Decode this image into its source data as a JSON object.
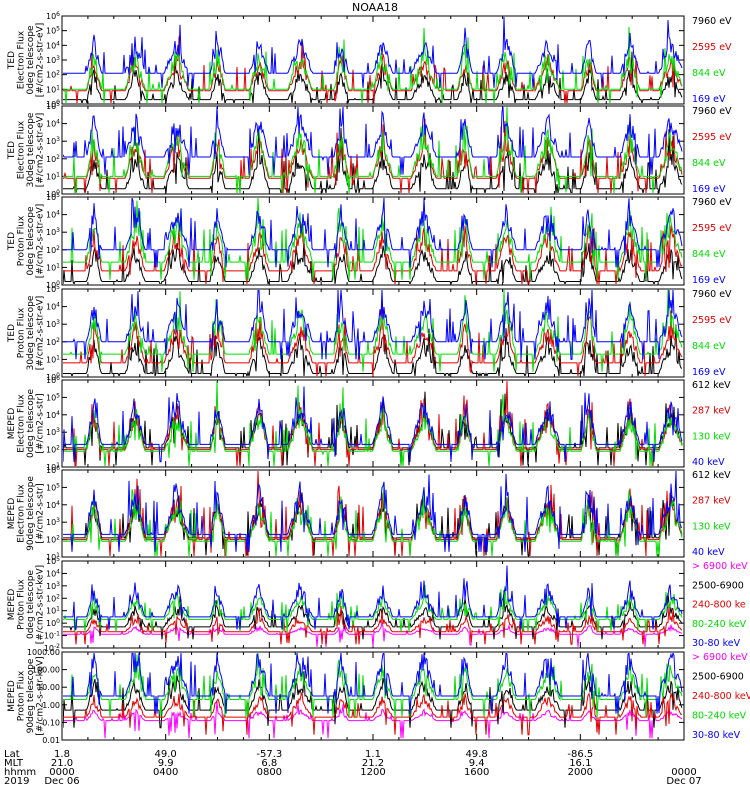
{
  "title": "NOAA18",
  "colors": {
    "black": "#000000",
    "red": "#e00000",
    "green": "#00dd00",
    "blue": "#0000ff",
    "magenta": "#ff00ff"
  },
  "chart_data": [
    {
      "type": "line",
      "name": "ted-electron-0deg",
      "ylabel": [
        "TED",
        "Electron Flux",
        "0deg telescope",
        "[#/cm2-s-str-eV]"
      ],
      "yscale": "log",
      "ylim": [
        1,
        1000000
      ],
      "ytick_labels": [
        "10^0",
        "10^1",
        "10^2",
        "10^3",
        "10^4",
        "10^5",
        "10^6"
      ],
      "series": [
        {
          "name": "7960 eV",
          "color": "black"
        },
        {
          "name": "2595 eV",
          "color": "red"
        },
        {
          "name": "844 eV",
          "color": "green"
        },
        {
          "name": "169 eV",
          "color": "blue"
        }
      ]
    },
    {
      "type": "line",
      "name": "ted-electron-30deg",
      "ylabel": [
        "TED",
        "Electron Flux",
        "30deg telescope",
        "[#/cm2-s-str-eV]"
      ],
      "yscale": "log",
      "ylim": [
        1,
        100000
      ],
      "ytick_labels": [
        "10^0",
        "10^1",
        "10^2",
        "10^3",
        "10^4",
        "10^5"
      ],
      "series": [
        {
          "name": "7960 eV",
          "color": "black"
        },
        {
          "name": "2595 eV",
          "color": "red"
        },
        {
          "name": "844 eV",
          "color": "green"
        },
        {
          "name": "169 eV",
          "color": "blue"
        }
      ]
    },
    {
      "type": "line",
      "name": "ted-proton-0deg",
      "ylabel": [
        "TED",
        "Proton Flux",
        "0deg telescope",
        "[#/cm2-s-str-eV]"
      ],
      "yscale": "log",
      "ylim": [
        1,
        100000
      ],
      "ytick_labels": [
        "10^0",
        "10^1",
        "10^2",
        "10^3",
        "10^4",
        "10^5"
      ],
      "series": [
        {
          "name": "7960 eV",
          "color": "black"
        },
        {
          "name": "2595 eV",
          "color": "red"
        },
        {
          "name": "844 eV",
          "color": "green"
        },
        {
          "name": "169 eV",
          "color": "blue"
        }
      ]
    },
    {
      "type": "line",
      "name": "ted-proton-30deg",
      "ylabel": [
        "TED",
        "Proton Flux",
        "30deg telescope",
        "[#/cm2-s-str-eV]"
      ],
      "yscale": "log",
      "ylim": [
        1,
        100000
      ],
      "ytick_labels": [
        "10^0",
        "10^1",
        "10^2",
        "10^3",
        "10^4",
        "10^5"
      ],
      "series": [
        {
          "name": "7960 eV",
          "color": "black"
        },
        {
          "name": "2595 eV",
          "color": "red"
        },
        {
          "name": "844 eV",
          "color": "green"
        },
        {
          "name": "169 eV",
          "color": "blue"
        }
      ]
    },
    {
      "type": "line",
      "name": "meped-electron-0deg",
      "ylabel": [
        "MEPED",
        "Electron Flux",
        "0deg telescope",
        "[#/cm2-s-str]"
      ],
      "yscale": "log",
      "ylim": [
        10,
        1000000
      ],
      "ytick_labels": [
        "10^1",
        "10^2",
        "10^3",
        "10^4",
        "10^5",
        "10^6"
      ],
      "series": [
        {
          "name": "612 keV",
          "color": "black"
        },
        {
          "name": "287 keV",
          "color": "red"
        },
        {
          "name": "130 keV",
          "color": "green"
        },
        {
          "name": "40 keV",
          "color": "blue"
        }
      ]
    },
    {
      "type": "line",
      "name": "meped-electron-90deg",
      "ylabel": [
        "MEPED",
        "Electron Flux",
        "90deg telescope",
        "[#/cm2-s-str]"
      ],
      "yscale": "log",
      "ylim": [
        10,
        1000000
      ],
      "ytick_labels": [
        "10^1",
        "10^2",
        "10^3",
        "10^4",
        "10^5",
        "10^6"
      ],
      "series": [
        {
          "name": "612 keV",
          "color": "black"
        },
        {
          "name": "287 keV",
          "color": "red"
        },
        {
          "name": "130 keV",
          "color": "green"
        },
        {
          "name": "40 keV",
          "color": "blue"
        }
      ]
    },
    {
      "type": "line",
      "name": "meped-proton-0deg",
      "ylabel": [
        "MEPED",
        "Proton Flux",
        "0deg telescope",
        "[#/cm2-s-str-keV]"
      ],
      "yscale": "log",
      "ylim": [
        0.01,
        100000
      ],
      "ytick_labels": [
        "10^-2",
        "10^-1",
        "10^0",
        "10^1",
        "10^2",
        "10^3",
        "10^4",
        "10^5"
      ],
      "series": [
        {
          "name": "> 6900 keV",
          "color": "magenta"
        },
        {
          "name": "2500-6900",
          "color": "black"
        },
        {
          "name": "240-800 ke",
          "color": "red"
        },
        {
          "name": "80-240 keV",
          "color": "green"
        },
        {
          "name": "30-80 keV",
          "color": "blue"
        }
      ]
    },
    {
      "type": "line",
      "name": "meped-proton-90deg",
      "ylabel": [
        "MEPED",
        "Proton Flux",
        "90deg telescope",
        "[#/cm2-s-str-keV]"
      ],
      "yscale": "log",
      "ylim": [
        0.01,
        1000
      ],
      "ytick_labels": [
        "0.01",
        "0.10",
        "1.00",
        "10.00",
        "100.00",
        "1000.00"
      ],
      "series": [
        {
          "name": "> 6900 keV",
          "color": "magenta"
        },
        {
          "name": "2500-6900",
          "color": "black"
        },
        {
          "name": "240-800 keV",
          "color": "red"
        },
        {
          "name": "80-240 keV",
          "color": "green"
        },
        {
          "name": "30-80 keV",
          "color": "blue"
        }
      ]
    }
  ],
  "x_axis": {
    "row_labels": [
      "Lat",
      "MLT",
      "hhmm",
      "2019"
    ],
    "ticks": [
      {
        "lat": "1.8",
        "mlt": "21.0",
        "hhmm": "0000",
        "date": "Dec 06"
      },
      {
        "lat": "49.0",
        "mlt": "9.9",
        "hhmm": "0400",
        "date": ""
      },
      {
        "lat": "-57.3",
        "mlt": "6.8",
        "hhmm": "0800",
        "date": ""
      },
      {
        "lat": "1.1",
        "mlt": "21.2",
        "hhmm": "1200",
        "date": ""
      },
      {
        "lat": "49.8",
        "mlt": "9.4",
        "hhmm": "1600",
        "date": ""
      },
      {
        "lat": "-86.5",
        "mlt": "16.1",
        "hhmm": "2000",
        "date": ""
      },
      {
        "lat": "",
        "mlt": "",
        "hhmm": "0000",
        "date": "Dec 07"
      }
    ]
  }
}
